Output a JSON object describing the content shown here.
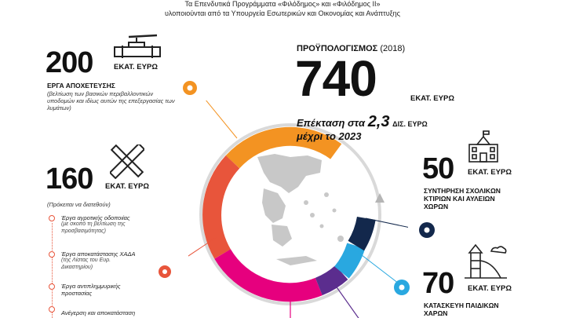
{
  "header": {
    "line1": "Τα Επενδυτικά Προγράμματα «Φιλόδημος» και «Φιλόδημος ΙΙ»",
    "line2": "υλοποιούνται  από τα Υπουργεία Εσωτερικών και Οικονομίας και Ανάπτυξης"
  },
  "budget": {
    "label": "ΠΡΟΫΠΟΛΟΓΙΣΜΟΣ",
    "year": "(2018)",
    "value": "740",
    "unit": "ΕΚΑΤ. ΕΥΡΩ",
    "extension_prefix": "Επέκταση στα",
    "extension_value": "2,3",
    "extension_unit": "ΔΙΣ. ΕΥΡΩ",
    "extension_until": "μέχρι το 2023"
  },
  "sewerage": {
    "value": "200",
    "unit": "ΕΚΑΤ. ΕΥΡΩ",
    "title": "ΕΡΓΑ ΑΠΟΧΕΤΕΥΣΗΣ",
    "desc": "(βελτίωση των βασικών περιβαλλοντικών υποδομών και ιδίως αυτών της επεξεργασίας των λυμάτων)",
    "icon": "valve-pipe-icon"
  },
  "roads": {
    "value": "160",
    "unit": "ΕΚΑΤ. ΕΥΡΩ",
    "note": "(Πρόκειται να διατεθούν)",
    "icon": "ruler-pencil-icon",
    "items": [
      {
        "title": "Έργα αγροτικής οδοποιίας",
        "sub": "(με σκοπό τη βελτίωση της προσβασιμότητας)"
      },
      {
        "title": "Έργα αποκατάστασης ΧΑΔΑ",
        "sub": "(της Λίστας του Ευρ. Δικαστηρίου)"
      },
      {
        "title": "Έργα αντιπλημμυρικής προστασίας",
        "sub": ""
      },
      {
        "title": "Ανέγερση και αποκατάσταση",
        "sub": ""
      }
    ]
  },
  "schools": {
    "value": "50",
    "unit": "ΕΚΑΤ. ΕΥΡΩ",
    "title": "ΣΥΝΤΗΡΗΣΗ ΣΧΟΛΙΚΩΝ ΚΤΙΡΙΩΝ ΚΑΙ ΑΥΛΕΙΩΝ ΧΩΡΩΝ",
    "icon": "school-building-icon"
  },
  "playgrounds": {
    "value": "70",
    "unit": "ΕΚΑΤ. ΕΥΡΩ",
    "title": "ΚΑΤΑΣΚΕΥΗ ΠΑΙΔΙΚΩΝ ΧΑΡΩΝ",
    "icon": "playground-slide-icon"
  },
  "colors": {
    "orange": "#f39322",
    "red": "#e8553b",
    "magenta": "#e6007e",
    "purple": "#5b2d8e",
    "light_blue": "#29a8e0",
    "navy": "#13284c",
    "gray_ring": "#d9d9d9",
    "map_gray": "#c8c8c8"
  }
}
